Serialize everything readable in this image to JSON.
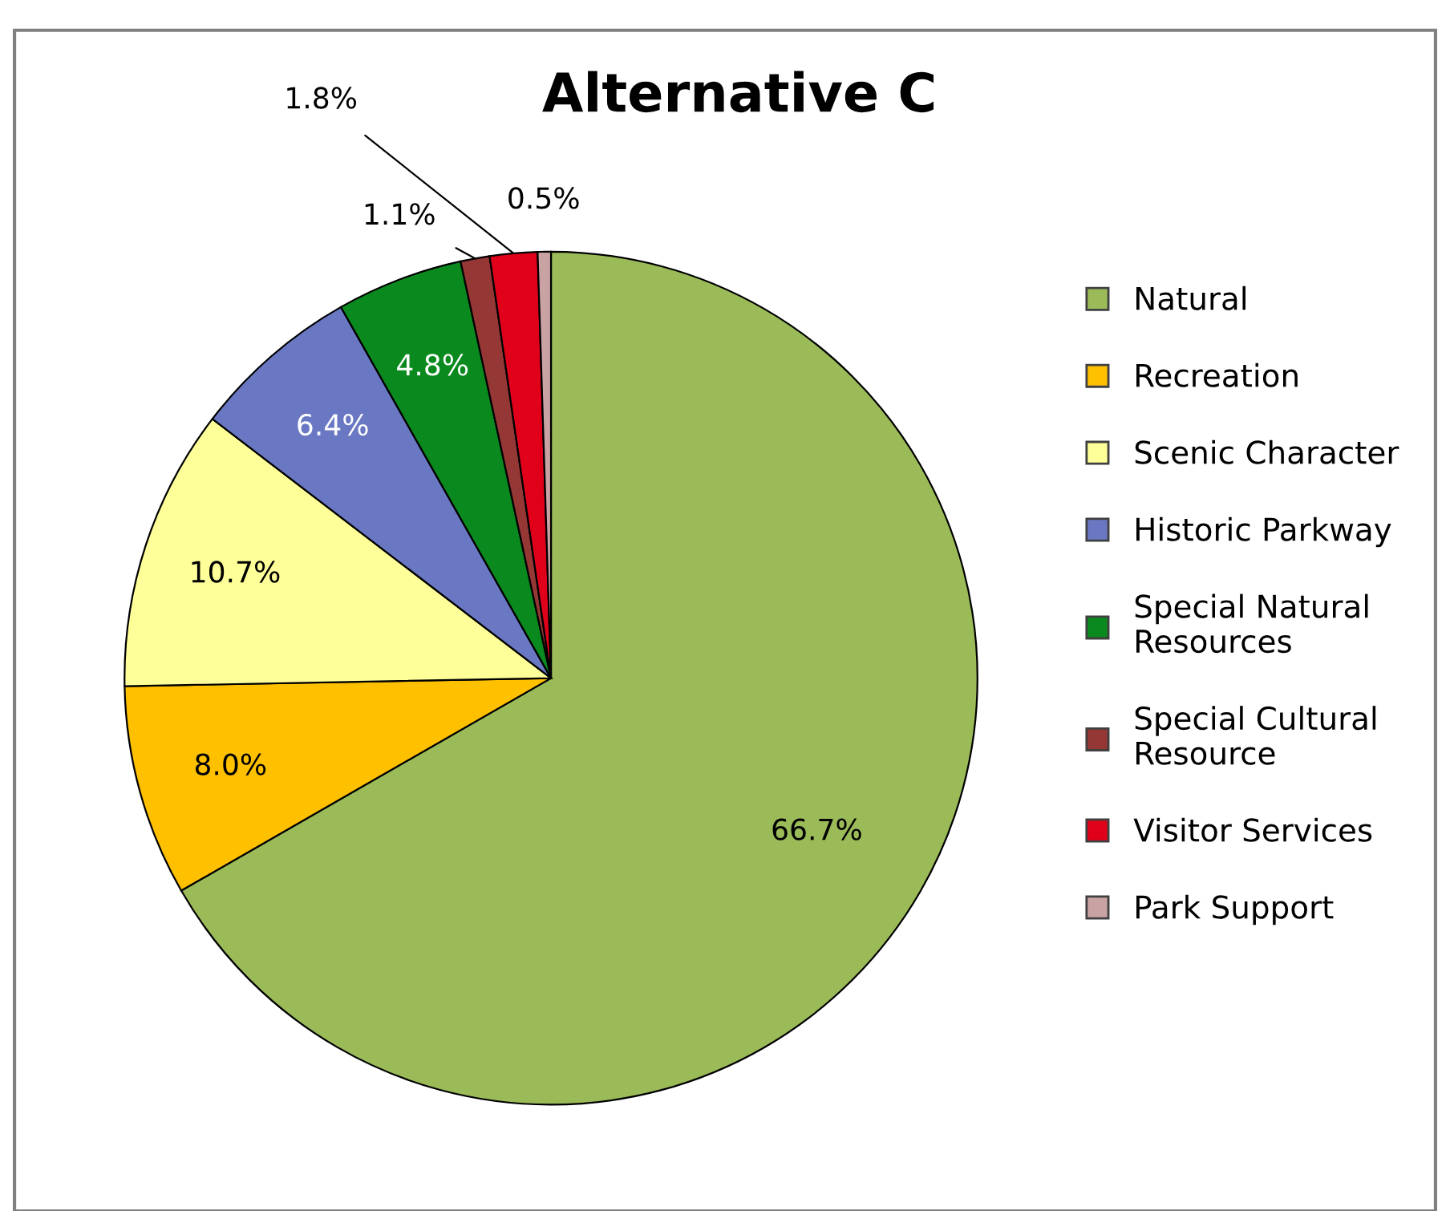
{
  "chart_data": {
    "type": "pie",
    "title": "Alternative C",
    "categories": [
      "Natural",
      "Recreation",
      "Scenic Character",
      "Historic Parkway",
      "Special Natural Resources",
      "Special Cultural Resource",
      "Visitor Services",
      "Park Support"
    ],
    "values": [
      66.7,
      8.0,
      10.7,
      6.4,
      4.8,
      1.1,
      1.8,
      0.5
    ],
    "colors": [
      "#9bbb59",
      "#ffc000",
      "#ffff99",
      "#6a78c4",
      "#0a8a1e",
      "#953735",
      "#e0001a",
      "#c9a3a3"
    ],
    "value_labels": [
      "66.7%",
      "8.0%",
      "10.7%",
      "6.4%",
      "4.8%",
      "1.1%",
      "1.8%",
      "0.5%"
    ],
    "legend": "right"
  }
}
